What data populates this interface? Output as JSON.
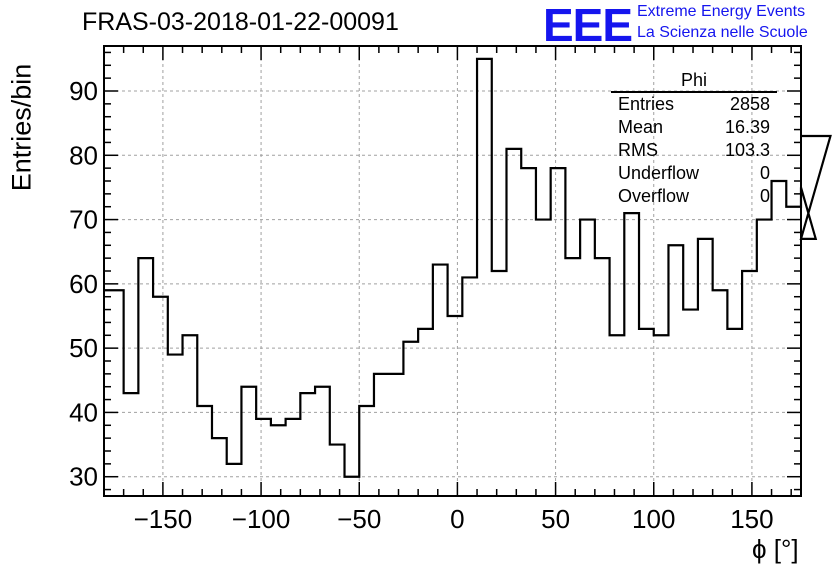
{
  "header": {
    "title": "FRAS-03-2018-01-22-00091",
    "logo_text": "EEE",
    "logo_line1": "Extreme Energy Events",
    "logo_line2": "La Scienza nelle Scuole",
    "logo_color": "#1515ee"
  },
  "stats": {
    "title": "Phi",
    "rows": [
      {
        "label": "Entries",
        "value": "2858"
      },
      {
        "label": "Mean",
        "value": "16.39"
      },
      {
        "label": "RMS",
        "value": "103.3"
      },
      {
        "label": "Underflow",
        "value": "0"
      },
      {
        "label": "Overflow",
        "value": "0"
      }
    ]
  },
  "chart_data": {
    "type": "histogram",
    "title": "FRAS-03-2018-01-22-00091",
    "xlabel": "ϕ [°]",
    "ylabel": "Entries/bin",
    "xlim": [
      -180,
      175
    ],
    "ylim": [
      27,
      97
    ],
    "bin_width": 7.5,
    "bin_edges_start": -177.5,
    "values": [
      59,
      43,
      64,
      58,
      49,
      52,
      41,
      36,
      32,
      44,
      39,
      38,
      39,
      43,
      44,
      35,
      30,
      41,
      46,
      46,
      51,
      53,
      63,
      55,
      61,
      95,
      62,
      81,
      78,
      70,
      78,
      64,
      70,
      64,
      52,
      71,
      53,
      52,
      66,
      56,
      67,
      59,
      53,
      62,
      70,
      76,
      72,
      75,
      67,
      83
    ],
    "x_ticks": [
      -150,
      -100,
      -50,
      0,
      50,
      100,
      150
    ],
    "x_tick_labels": [
      "−150",
      "−100",
      "−50",
      "0",
      "50",
      "100",
      "150"
    ],
    "y_ticks": [
      30,
      40,
      50,
      60,
      70,
      80,
      90
    ],
    "y_tick_labels": [
      "30",
      "40",
      "50",
      "60",
      "70",
      "80",
      "90"
    ],
    "grid": true,
    "line_color": "#000000",
    "grid_color": "#a0a0a0"
  }
}
